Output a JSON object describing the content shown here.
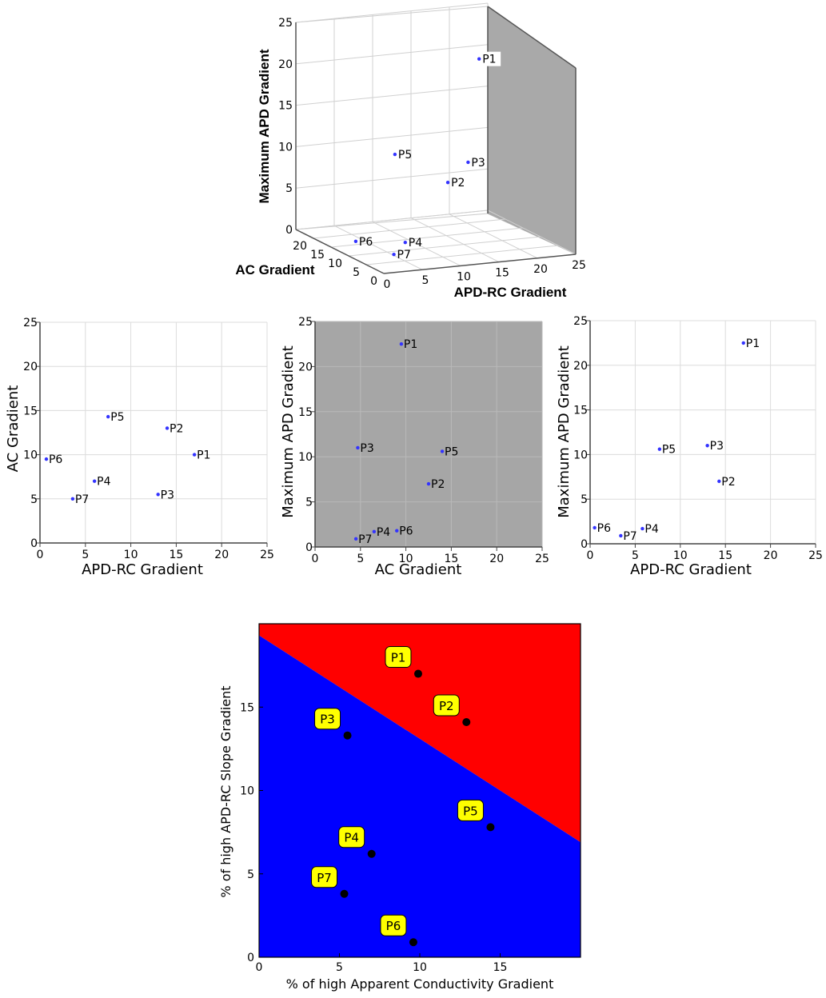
{
  "chart_data": [
    {
      "type": "scatter3d",
      "xlabel": "APD-RC Gradient",
      "ylabel": "AC Gradient",
      "zlabel": "Maximum APD Gradient",
      "x_ticks": [
        "0",
        "5",
        "10",
        "15",
        "20",
        "25"
      ],
      "y_ticks": [
        "0",
        "5",
        "10",
        "15",
        "20"
      ],
      "z_ticks": [
        "0",
        "5",
        "10",
        "15",
        "20",
        "25"
      ],
      "xlim": [
        0,
        25
      ],
      "ylim": [
        0,
        25
      ],
      "zlim": [
        0,
        25
      ],
      "points": [
        {
          "label": "P1",
          "x": 17,
          "y": 10,
          "z": 22.2
        },
        {
          "label": "P2",
          "x": 14.3,
          "y": 13,
          "z": 6.9
        },
        {
          "label": "P3",
          "x": 13.5,
          "y": 5.5,
          "z": 11
        },
        {
          "label": "P4",
          "x": 6,
          "y": 7,
          "z": 1.7
        },
        {
          "label": "P5",
          "x": 8,
          "y": 14.3,
          "z": 10.6
        },
        {
          "label": "P6",
          "x": 0.7,
          "y": 9.5,
          "z": 1.8
        },
        {
          "label": "P7",
          "x": 3.6,
          "y": 5,
          "z": 0.9
        }
      ]
    },
    {
      "type": "scatter",
      "xlabel": "APD-RC Gradient",
      "ylabel": "AC Gradient",
      "x_ticks": [
        "0",
        "5",
        "10",
        "15",
        "20",
        "25"
      ],
      "y_ticks": [
        "0",
        "5",
        "10",
        "15",
        "20",
        "25"
      ],
      "xlim": [
        0,
        25
      ],
      "ylim": [
        0,
        25
      ],
      "points": [
        {
          "label": "P1",
          "x": 17,
          "y": 10
        },
        {
          "label": "P2",
          "x": 14,
          "y": 13
        },
        {
          "label": "P3",
          "x": 13,
          "y": 5.5
        },
        {
          "label": "P4",
          "x": 6,
          "y": 7
        },
        {
          "label": "P5",
          "x": 7.5,
          "y": 14.3
        },
        {
          "label": "P6",
          "x": 0.7,
          "y": 9.5
        },
        {
          "label": "P7",
          "x": 3.6,
          "y": 5
        }
      ]
    },
    {
      "type": "scatter",
      "xlabel": "AC Gradient",
      "ylabel": "Maximum APD Gradient",
      "x_ticks": [
        "0",
        "5",
        "10",
        "15",
        "20",
        "25"
      ],
      "y_ticks": [
        "0",
        "5",
        "10",
        "15",
        "20",
        "25"
      ],
      "xlim": [
        0,
        25
      ],
      "ylim": [
        0,
        25
      ],
      "background": "#a6a6a6",
      "points": [
        {
          "label": "P1",
          "x": 9.5,
          "y": 22.5
        },
        {
          "label": "P2",
          "x": 12.5,
          "y": 7
        },
        {
          "label": "P3",
          "x": 4.7,
          "y": 11
        },
        {
          "label": "P4",
          "x": 6.5,
          "y": 1.7
        },
        {
          "label": "P5",
          "x": 14,
          "y": 10.6
        },
        {
          "label": "P6",
          "x": 9,
          "y": 1.8
        },
        {
          "label": "P7",
          "x": 4.5,
          "y": 0.9
        }
      ]
    },
    {
      "type": "scatter",
      "xlabel": "APD-RC Gradient",
      "ylabel": "Maximum APD Gradient",
      "x_ticks": [
        "0",
        "5",
        "10",
        "15",
        "20",
        "25"
      ],
      "y_ticks": [
        "0",
        "5",
        "10",
        "15",
        "20",
        "25"
      ],
      "xlim": [
        0,
        25
      ],
      "ylim": [
        0,
        25
      ],
      "points": [
        {
          "label": "P1",
          "x": 17,
          "y": 22.5
        },
        {
          "label": "P2",
          "x": 14.3,
          "y": 7
        },
        {
          "label": "P3",
          "x": 13,
          "y": 11
        },
        {
          "label": "P4",
          "x": 5.8,
          "y": 1.7
        },
        {
          "label": "P5",
          "x": 7.7,
          "y": 10.6
        },
        {
          "label": "P6",
          "x": 0.5,
          "y": 1.8
        },
        {
          "label": "P7",
          "x": 3.4,
          "y": 0.9
        }
      ]
    },
    {
      "type": "scatter",
      "xlabel": "% of high Apparent Conductivity Gradient",
      "ylabel": "% of high APD-RC Slope Gradient",
      "x_ticks": [
        "0",
        "5",
        "10",
        "15"
      ],
      "y_ticks": [
        "0",
        "5",
        "10",
        "15"
      ],
      "xlim": [
        0,
        20
      ],
      "ylim": [
        0,
        20
      ],
      "regions": {
        "boundary": [
          [
            0,
            19.3
          ],
          [
            20,
            6.9
          ]
        ],
        "above_color": "#ff0000",
        "below_color": "#0000ff"
      },
      "label_color": "#ffff00",
      "marker_color": "#000000",
      "points": [
        {
          "label": "P1",
          "x": 9.9,
          "y": 17
        },
        {
          "label": "P2",
          "x": 12.9,
          "y": 14.1
        },
        {
          "label": "P3",
          "x": 5.5,
          "y": 13.3
        },
        {
          "label": "P4",
          "x": 7,
          "y": 6.2
        },
        {
          "label": "P5",
          "x": 14.4,
          "y": 7.8
        },
        {
          "label": "P6",
          "x": 9.6,
          "y": 0.9
        },
        {
          "label": "P7",
          "x": 5.3,
          "y": 3.8
        }
      ]
    }
  ]
}
